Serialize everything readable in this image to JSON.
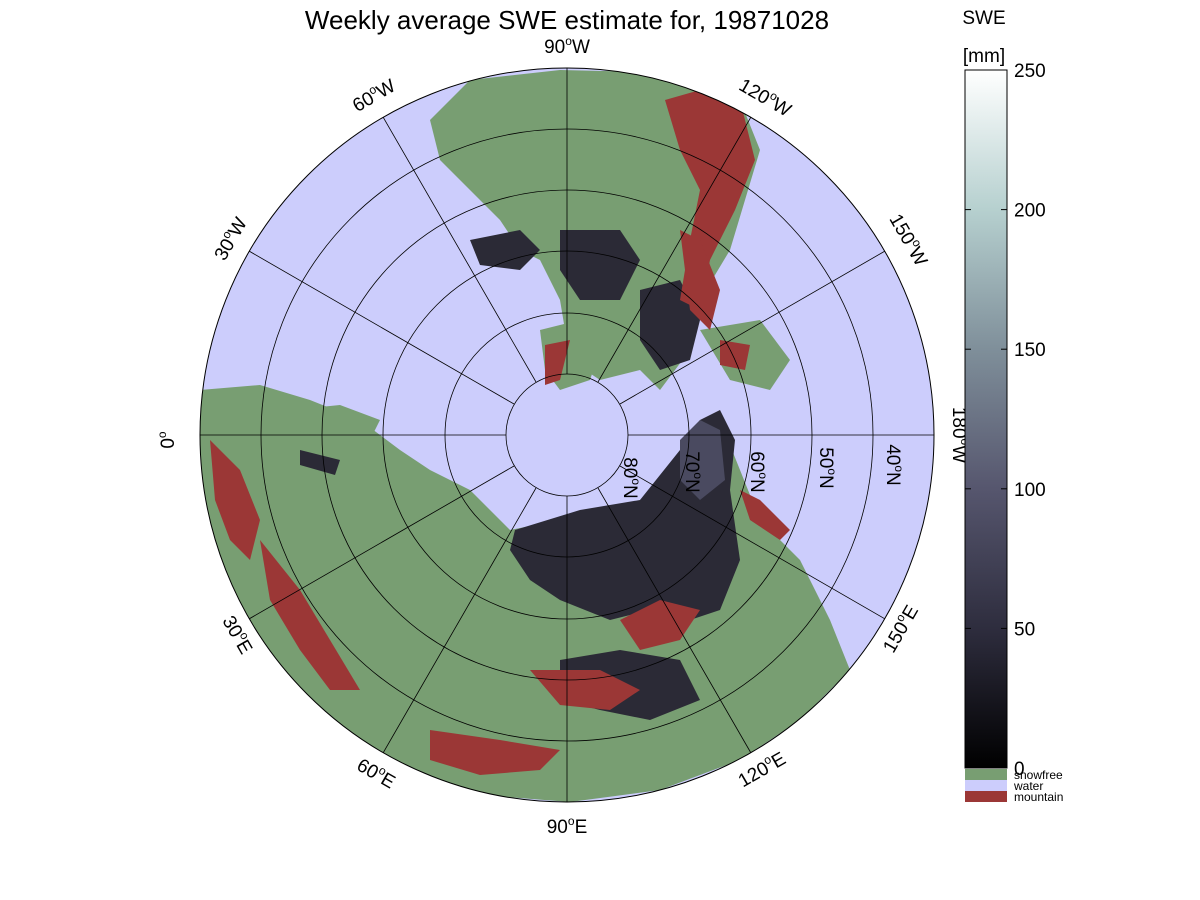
{
  "title": "Weekly average SWE estimate for, 19871028",
  "colorbar": {
    "title_line1": "SWE",
    "title_line2": "[mm]",
    "ticks": [
      0,
      50,
      100,
      150,
      200,
      250
    ],
    "min": 0,
    "max": 250,
    "categories": [
      {
        "label": "snowfree",
        "color": "#789e72"
      },
      {
        "label": "water",
        "color": "#cccdfc"
      },
      {
        "label": "mountain",
        "color": "#9b3736"
      }
    ]
  },
  "longitude_labels": [
    {
      "base": "90",
      "sup": "o",
      "suffix": "W",
      "lon": -90
    },
    {
      "base": "120",
      "sup": "o",
      "suffix": "W",
      "lon": -120
    },
    {
      "base": "150",
      "sup": "o",
      "suffix": "W",
      "lon": -150
    },
    {
      "base": "180",
      "sup": "o",
      "suffix": "W",
      "lon": 180
    },
    {
      "base": "150",
      "sup": "o",
      "suffix": "E",
      "lon": 150
    },
    {
      "base": "120",
      "sup": "o",
      "suffix": "E",
      "lon": 120
    },
    {
      "base": "90",
      "sup": "o",
      "suffix": "E",
      "lon": 90
    },
    {
      "base": "60",
      "sup": "o",
      "suffix": "E",
      "lon": 60
    },
    {
      "base": "30",
      "sup": "o",
      "suffix": "E",
      "lon": 30
    },
    {
      "base": "0",
      "sup": "o",
      "suffix": "",
      "lon": 0
    },
    {
      "base": "30",
      "sup": "o",
      "suffix": "W",
      "lon": -30
    },
    {
      "base": "60",
      "sup": "o",
      "suffix": "W",
      "lon": -60
    }
  ],
  "latitude_labels": [
    {
      "base": "80",
      "sup": "o",
      "suffix": "N",
      "lat": 80
    },
    {
      "base": "70",
      "sup": "o",
      "suffix": "N",
      "lat": 70
    },
    {
      "base": "60",
      "sup": "o",
      "suffix": "N",
      "lat": 60
    },
    {
      "base": "50",
      "sup": "o",
      "suffix": "N",
      "lat": 50
    },
    {
      "base": "40",
      "sup": "o",
      "suffix": "N",
      "lat": 40
    }
  ],
  "map": {
    "projection": "north polar azimuthal",
    "lat_range": [
      25,
      90
    ],
    "graticule_lats": [
      80,
      70,
      60,
      50,
      40,
      30
    ],
    "meridian_step_deg": 30,
    "colors": {
      "water": "#cccdfc",
      "snowfree": "#789e72",
      "mountain": "#9b3736",
      "snow_dark": "#2b2a36",
      "snow_medium": "#4a4a60"
    }
  }
}
